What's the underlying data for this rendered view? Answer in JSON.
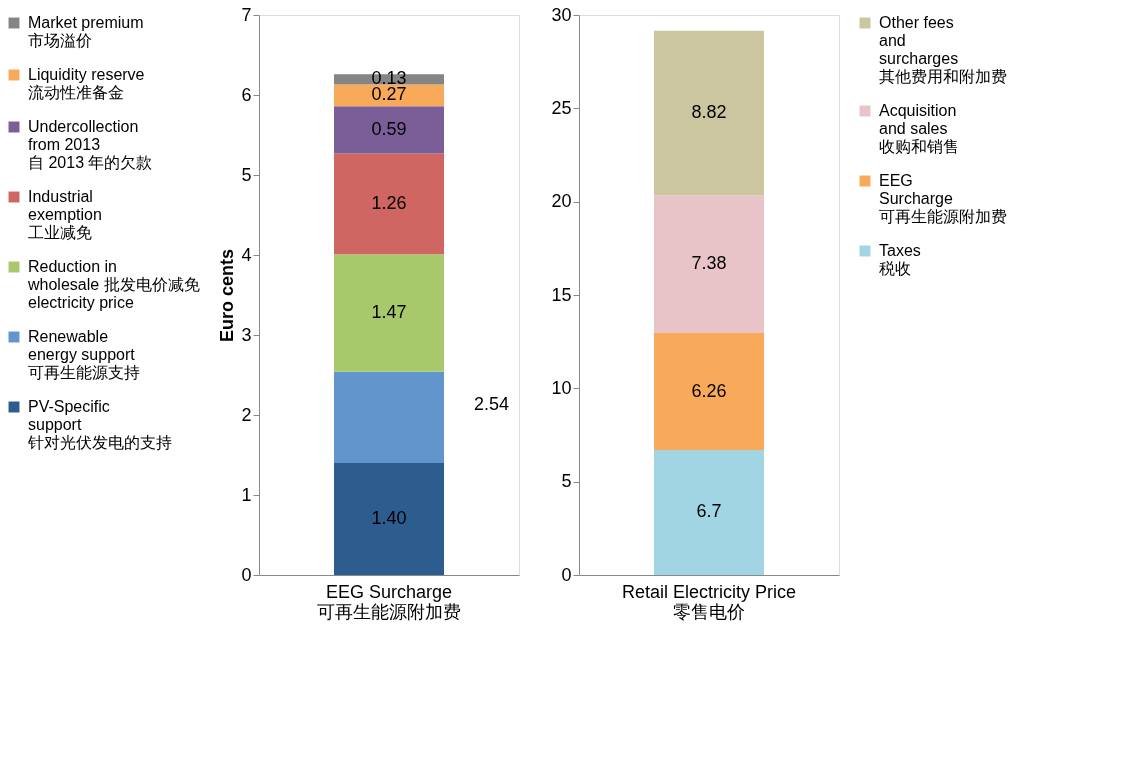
{
  "chart_data": [
    {
      "type": "bar",
      "stacked": true,
      "categories": [
        "EEG Surcharge\n可再生能源附加费"
      ],
      "ylabel": "Euro cents",
      "ylim": [
        0,
        7
      ],
      "yticks": [
        0,
        1,
        2,
        3,
        4,
        5,
        6,
        7
      ],
      "grid": false,
      "legend": "left",
      "series": [
        {
          "name": "PV-Specific\nsupport\n针对光伏发电的支持",
          "color": "#2d5d8f",
          "values": [
            1.4
          ],
          "value_labels": [
            "1.40"
          ]
        },
        {
          "name": "Renewable\nenergy support\n可再生能源支持",
          "color": "#6195cb",
          "values": [
            1.14
          ],
          "value_labels": [
            null
          ]
        },
        {
          "name": "Reduction in\nwholesale 批发电价减免\nelectricity price",
          "color": "#a8c86c",
          "values": [
            1.47
          ],
          "value_labels": [
            "1.47"
          ]
        },
        {
          "name": "Industrial\nexemption\n工业减免",
          "color": "#cf6662",
          "values": [
            1.26
          ],
          "value_labels": [
            "1.26"
          ]
        },
        {
          "name": "Undercollection\nfrom 2013\n自 2013 年的欠款",
          "color": "#7b5e98",
          "values": [
            0.59
          ],
          "value_labels": [
            "0.59"
          ]
        },
        {
          "name": "Liquidity reserve\n流动性准备金",
          "color": "#f9a95a",
          "values": [
            0.27
          ],
          "value_labels": [
            "0.27"
          ]
        },
        {
          "name": "Market premium\n市场溢价",
          "color": "#858585",
          "values": [
            0.13
          ],
          "value_labels": [
            "0.13"
          ]
        }
      ],
      "annotations": [
        "2.54"
      ]
    },
    {
      "type": "bar",
      "stacked": true,
      "categories": [
        "Retail Electricity Price\n零售电价"
      ],
      "ylim": [
        0,
        30
      ],
      "yticks": [
        0,
        5,
        10,
        15,
        20,
        25,
        30
      ],
      "grid": false,
      "legend": "right",
      "series": [
        {
          "name": "Taxes\n税收",
          "color": "#a1d5e3",
          "values": [
            6.7
          ],
          "value_labels": [
            "6.7"
          ]
        },
        {
          "name": "EEG\nSurcharge\n可再生能源附加费",
          "color": "#f9a95a",
          "values": [
            6.26
          ],
          "value_labels": [
            "6.26"
          ]
        },
        {
          "name": "Acquisition\nand sales\n收购和销售",
          "color": "#e8c4c8",
          "values": [
            7.38
          ],
          "value_labels": [
            "7.38"
          ]
        },
        {
          "name": "Other fees\nand\nsurcharges\n其他费用和附加费",
          "color": "#cbc5a0",
          "values": [
            8.82
          ],
          "value_labels": [
            "8.82"
          ]
        }
      ]
    }
  ]
}
